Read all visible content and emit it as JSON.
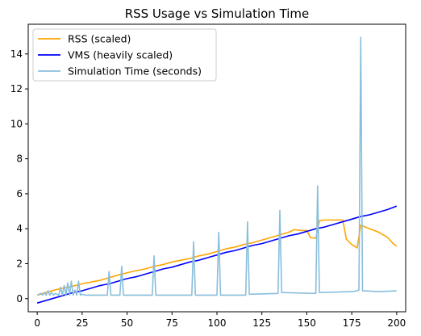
{
  "chart_data": {
    "type": "line",
    "title": "RSS Usage vs Simulation Time",
    "xlabel": "",
    "ylabel": "",
    "xlim": [
      -5,
      205
    ],
    "ylim": [
      -0.75,
      15.7
    ],
    "xticks": [
      0,
      25,
      50,
      75,
      100,
      125,
      150,
      175,
      200
    ],
    "yticks": [
      0,
      2,
      4,
      6,
      8,
      10,
      12,
      14
    ],
    "grid": false,
    "legend_position": "top-left",
    "series": [
      {
        "name": "RSS (scaled)",
        "color": "#ffa500",
        "x": [
          0,
          5,
          10,
          15,
          20,
          25,
          30,
          35,
          40,
          45,
          50,
          55,
          60,
          65,
          70,
          75,
          80,
          85,
          90,
          95,
          100,
          105,
          110,
          115,
          120,
          125,
          130,
          135,
          140,
          143,
          147,
          150,
          152,
          155,
          157,
          160,
          163,
          166,
          170,
          172,
          175,
          178,
          180,
          185,
          190,
          195,
          198,
          200
        ],
        "y": [
          0.2,
          0.35,
          0.5,
          0.62,
          0.72,
          0.85,
          0.95,
          1.05,
          1.2,
          1.35,
          1.48,
          1.6,
          1.7,
          1.85,
          1.95,
          2.1,
          2.2,
          2.3,
          2.45,
          2.55,
          2.7,
          2.85,
          2.95,
          3.1,
          3.2,
          3.35,
          3.5,
          3.65,
          3.8,
          3.95,
          3.9,
          3.9,
          3.5,
          3.45,
          4.45,
          4.5,
          4.5,
          4.5,
          4.5,
          3.4,
          3.1,
          2.9,
          4.2,
          4.0,
          3.8,
          3.5,
          3.15,
          3.0
        ]
      },
      {
        "name": "VMS (heavily scaled)",
        "color": "#0000ff",
        "x": [
          0,
          5,
          10,
          15,
          20,
          25,
          30,
          35,
          40,
          45,
          50,
          55,
          60,
          65,
          70,
          75,
          80,
          85,
          90,
          95,
          100,
          105,
          110,
          115,
          120,
          125,
          130,
          135,
          140,
          145,
          150,
          155,
          160,
          165,
          170,
          175,
          180,
          185,
          190,
          195,
          200
        ],
        "y": [
          -0.25,
          -0.1,
          0.05,
          0.2,
          0.35,
          0.45,
          0.6,
          0.75,
          0.85,
          1.0,
          1.15,
          1.25,
          1.4,
          1.55,
          1.7,
          1.8,
          1.95,
          2.1,
          2.2,
          2.35,
          2.5,
          2.65,
          2.75,
          2.9,
          3.05,
          3.15,
          3.3,
          3.45,
          3.6,
          3.7,
          3.85,
          4.0,
          4.1,
          4.25,
          4.4,
          4.55,
          4.7,
          4.8,
          4.95,
          5.1,
          5.3
        ]
      },
      {
        "name": "Simulation Time (seconds)",
        "color": "#89bedc",
        "x": [
          0,
          2,
          3,
          4,
          5,
          6,
          7,
          8,
          9,
          10,
          12,
          13,
          14,
          15,
          16,
          17,
          18,
          19,
          20,
          21,
          22,
          23,
          24,
          25,
          27,
          39,
          40,
          41,
          46,
          47,
          48,
          64,
          65,
          66,
          86,
          87,
          88,
          100,
          101,
          102,
          116,
          117,
          118,
          134,
          135,
          136,
          155,
          156,
          157,
          175,
          178,
          179,
          180,
          181,
          182,
          190,
          200
        ],
        "y": [
          0.2,
          0.3,
          0.2,
          0.35,
          0.2,
          0.45,
          0.2,
          0.35,
          0.2,
          0.3,
          0.2,
          0.65,
          0.2,
          0.75,
          0.2,
          0.9,
          0.2,
          1.0,
          0.2,
          0.5,
          0.2,
          1.0,
          0.2,
          0.25,
          0.2,
          0.2,
          1.55,
          0.2,
          0.2,
          1.85,
          0.2,
          0.2,
          2.45,
          0.2,
          0.2,
          3.25,
          0.2,
          0.2,
          3.8,
          0.2,
          0.2,
          4.4,
          0.25,
          0.3,
          5.05,
          0.35,
          0.3,
          6.45,
          0.35,
          0.4,
          0.45,
          0.5,
          14.95,
          0.45,
          0.45,
          0.4,
          0.45
        ]
      }
    ]
  }
}
